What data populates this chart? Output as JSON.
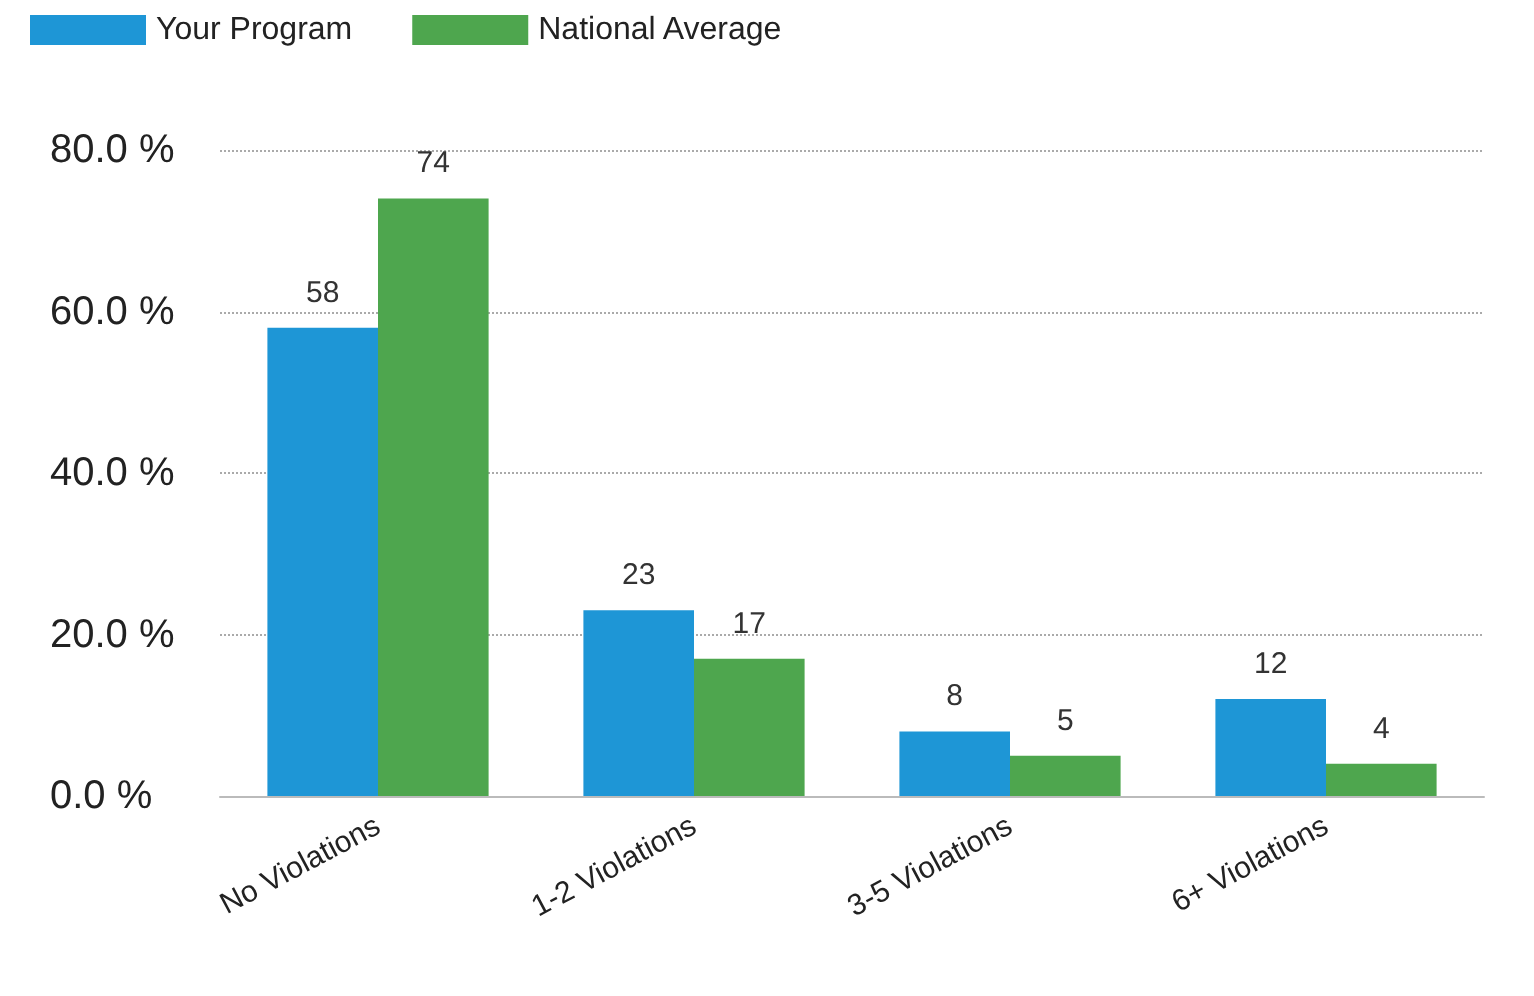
{
  "chart_data": {
    "type": "bar",
    "categories": [
      "No Violations",
      "1-2 Violations",
      "3-5 Violations",
      "6+ Violations"
    ],
    "series": [
      {
        "name": "Your Program",
        "color": "#1e96d6",
        "values": [
          58,
          23,
          8,
          12
        ]
      },
      {
        "name": "National Average",
        "color": "#4ea64e",
        "values": [
          74,
          17,
          5,
          4
        ]
      }
    ],
    "ylim": [
      0,
      80
    ],
    "yticks": [
      {
        "value": 0,
        "label": "0.0 %"
      },
      {
        "value": 20,
        "label": "20.0 %"
      },
      {
        "value": 40,
        "label": "40.0 %"
      },
      {
        "value": 60,
        "label": "60.0 %"
      },
      {
        "value": 80,
        "label": "80.0 %"
      }
    ],
    "grid": "y",
    "legend": "top left",
    "data_labels": true
  }
}
